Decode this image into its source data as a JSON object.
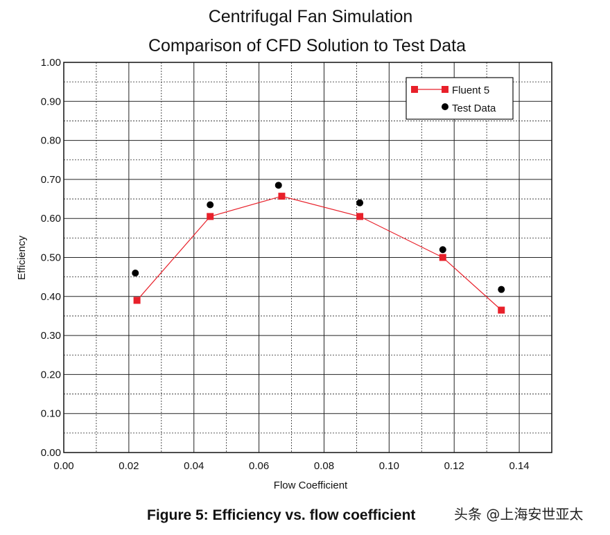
{
  "chart_data": {
    "type": "line",
    "title": "Centrifugal Fan Simulation",
    "subtitle": "Comparison of CFD Solution to Test Data",
    "xlabel": "Flow Coefficient",
    "ylabel": "Efficiency",
    "xlim": [
      0,
      0.15
    ],
    "ylim": [
      0,
      1.0
    ],
    "x_ticks": [
      "0.00",
      "0.02",
      "0.04",
      "0.06",
      "0.08",
      "0.10",
      "0.12",
      "0.14"
    ],
    "y_ticks": [
      "0.00",
      "0.10",
      "0.20",
      "0.30",
      "0.40",
      "0.50",
      "0.60",
      "0.70",
      "0.80",
      "0.90",
      "1.00"
    ],
    "grid": true,
    "legend_position": "top-right",
    "series": [
      {
        "name": "Fluent 5",
        "style": "line-square",
        "color": "#e8202a",
        "x": [
          0.0225,
          0.045,
          0.067,
          0.091,
          0.1165,
          0.1345
        ],
        "y": [
          0.39,
          0.605,
          0.657,
          0.605,
          0.5,
          0.365
        ]
      },
      {
        "name": "Test Data",
        "style": "circle",
        "color": "#000000",
        "x": [
          0.022,
          0.045,
          0.066,
          0.091,
          0.1165,
          0.1345
        ],
        "y": [
          0.46,
          0.635,
          0.685,
          0.64,
          0.52,
          0.418
        ]
      }
    ]
  },
  "caption": "Figure 5:  Efficiency vs. flow coefficient",
  "watermark": "头条 @上海安世亚太"
}
